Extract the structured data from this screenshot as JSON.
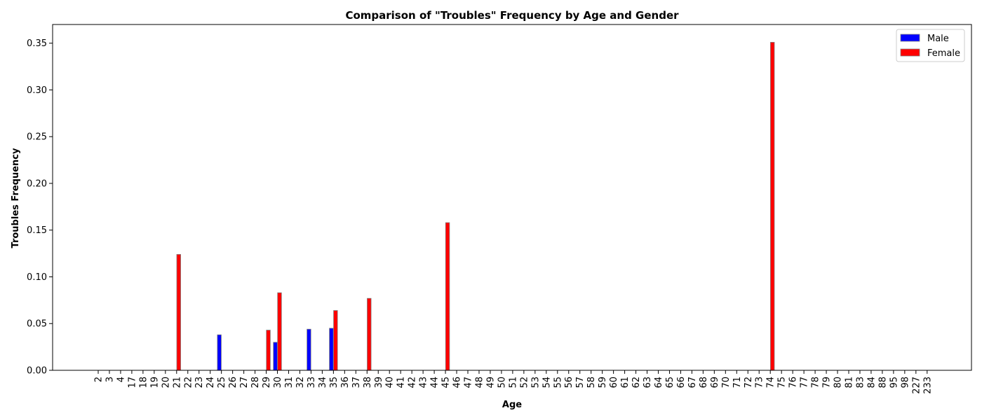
{
  "chart_data": {
    "type": "bar",
    "title": "Comparison of \"Troubles\" Frequency by Age and Gender",
    "xlabel": "Age",
    "ylabel": "Troubles Frequency",
    "ylim": [
      0,
      0.37
    ],
    "yticks": [
      "0.00",
      "0.05",
      "0.10",
      "0.15",
      "0.20",
      "0.25",
      "0.30",
      "0.35"
    ],
    "ytick_values": [
      0,
      0.05,
      0.1,
      0.15,
      0.2,
      0.25,
      0.3,
      0.35
    ],
    "grid": false,
    "legend_position": "top-right",
    "categories": [
      "2",
      "3",
      "4",
      "17",
      "18",
      "19",
      "20",
      "21",
      "22",
      "23",
      "24",
      "25",
      "26",
      "27",
      "28",
      "29",
      "30",
      "31",
      "32",
      "33",
      "34",
      "35",
      "36",
      "37",
      "38",
      "39",
      "40",
      "41",
      "42",
      "43",
      "44",
      "45",
      "46",
      "47",
      "48",
      "49",
      "50",
      "51",
      "52",
      "53",
      "54",
      "55",
      "56",
      "57",
      "58",
      "59",
      "60",
      "61",
      "62",
      "63",
      "64",
      "65",
      "66",
      "67",
      "68",
      "69",
      "70",
      "71",
      "72",
      "73",
      "74",
      "75",
      "76",
      "77",
      "78",
      "79",
      "80",
      "81",
      "83",
      "84",
      "88",
      "95",
      "98",
      "227",
      "233"
    ],
    "series": [
      {
        "name": "Male",
        "color": "#0000ff",
        "values": [
          0,
          0,
          0,
          0,
          0,
          0,
          0,
          0,
          0,
          0,
          0,
          0.038,
          0,
          0,
          0,
          0,
          0.03,
          0,
          0,
          0.044,
          0,
          0.045,
          0,
          0,
          0,
          0,
          0,
          0,
          0,
          0,
          0,
          0,
          0,
          0,
          0,
          0,
          0,
          0,
          0,
          0,
          0,
          0,
          0,
          0,
          0,
          0,
          0,
          0,
          0,
          0,
          0,
          0,
          0,
          0,
          0,
          0,
          0,
          0,
          0,
          0,
          0,
          0,
          0,
          0,
          0,
          0,
          0,
          0,
          0,
          0,
          0,
          0,
          0,
          0,
          0
        ]
      },
      {
        "name": "Female",
        "color": "#ff0000",
        "values": [
          0,
          0,
          0,
          0,
          0,
          0,
          0,
          0.124,
          0,
          0,
          0,
          0,
          0,
          0,
          0,
          0.043,
          0.083,
          0,
          0,
          0,
          0,
          0.064,
          0,
          0,
          0.077,
          0,
          0,
          0,
          0,
          0,
          0,
          0.158,
          0,
          0,
          0,
          0,
          0,
          0,
          0,
          0,
          0,
          0,
          0,
          0,
          0,
          0,
          0,
          0,
          0,
          0,
          0,
          0,
          0,
          0,
          0,
          0,
          0,
          0,
          0,
          0,
          0.351,
          0,
          0,
          0,
          0,
          0,
          0,
          0,
          0,
          0,
          0,
          0,
          0,
          0,
          0
        ]
      }
    ]
  }
}
